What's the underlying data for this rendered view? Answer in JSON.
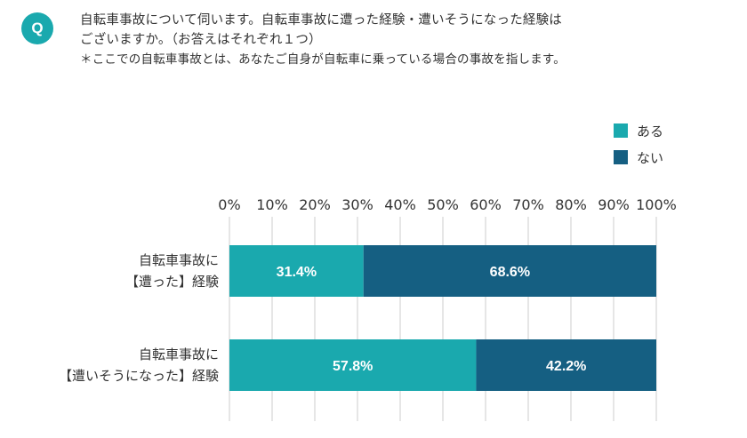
{
  "question": {
    "badge": "Q",
    "line1": "自転車事故について伺います。自転車事故に遭った経験・遭いそうになった経験は",
    "line2": "ございますか。（お答えはそれぞれ１つ）",
    "note": "＊ここでの自転車事故とは、あなたご自身が自転車に乗っている場合の事故を指します。"
  },
  "colors": {
    "aru": "#1aa9ae",
    "nai": "#155f82",
    "badge": "#1aa9ae",
    "grid": "#cccccc",
    "label_text": "#ffffff"
  },
  "chart_data": {
    "type": "bar",
    "orientation": "horizontal",
    "stacked": true,
    "percent_stacked": true,
    "title": "",
    "xlabel": "",
    "ylabel": "",
    "xlim": [
      0,
      100
    ],
    "x_ticks": [
      "0%",
      "10%",
      "20%",
      "30%",
      "40%",
      "50%",
      "60%",
      "70%",
      "80%",
      "90%",
      "100%"
    ],
    "grid": true,
    "legend_position": "top-right",
    "categories": [
      [
        "自転車事故に",
        "【遭った】経験"
      ],
      [
        "自転車事故に",
        "【遭いそうになった】経験"
      ]
    ],
    "series": [
      {
        "name": "ある",
        "values": [
          31.4,
          57.8
        ],
        "labels": [
          "31.4%",
          "57.8%"
        ]
      },
      {
        "name": "ない",
        "values": [
          68.6,
          42.2
        ],
        "labels": [
          "68.6%",
          "42.2%"
        ]
      }
    ]
  }
}
